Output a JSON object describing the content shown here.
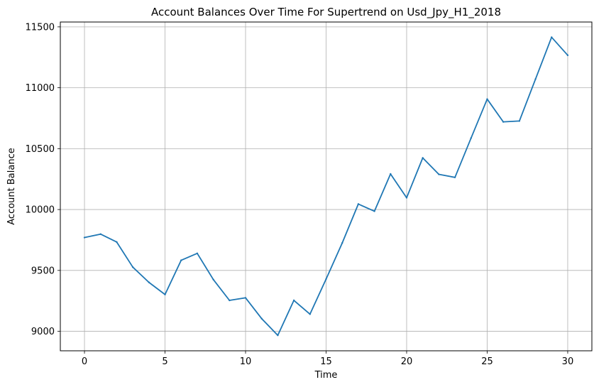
{
  "chart_data": {
    "type": "line",
    "title": "Account Balances Over Time For Supertrend on Usd_Jpy_H1_2018",
    "xlabel": "Time",
    "ylabel": "Account Balance",
    "xlim": [
      -1.5,
      31.5
    ],
    "ylim": [
      8840,
      11540
    ],
    "xticks": [
      0,
      5,
      10,
      15,
      20,
      25,
      30
    ],
    "yticks": [
      9000,
      9500,
      10000,
      10500,
      11000,
      11500
    ],
    "grid": true,
    "line_color": "#1f77b4",
    "series": [
      {
        "x": [
          0,
          1,
          2,
          3,
          4,
          5,
          6,
          7,
          8,
          9,
          10,
          11,
          12,
          13,
          14,
          15,
          16,
          17,
          18,
          19,
          20,
          21,
          22,
          23,
          24,
          25,
          26,
          27,
          28,
          29,
          30
        ],
        "values": [
          9770,
          9798,
          9733,
          9527,
          9402,
          9302,
          9583,
          9640,
          9425,
          9254,
          9275,
          9104,
          8967,
          9254,
          9141,
          9429,
          9725,
          10045,
          9986,
          10292,
          10097,
          10424,
          10289,
          10264,
          10587,
          10907,
          10720,
          10727,
          11071,
          11415,
          11267
        ]
      }
    ]
  }
}
